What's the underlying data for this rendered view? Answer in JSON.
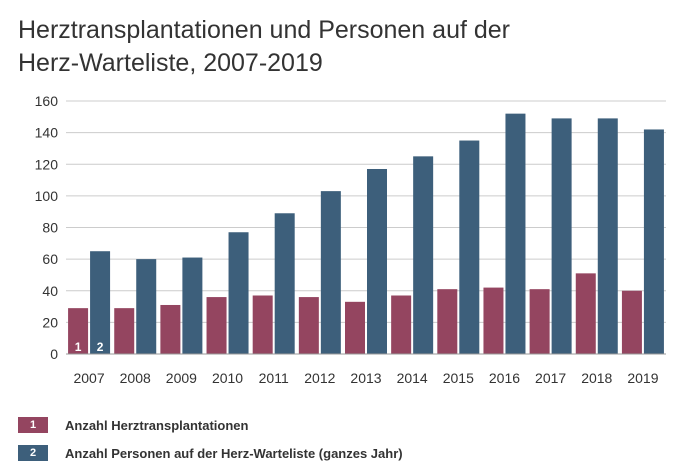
{
  "title_line1": "Herztransplantationen und Personen auf der",
  "title_line2": "Herz-Warteliste, 2007-2019",
  "colors": {
    "series1": "#944560",
    "series2": "#3d5f7b",
    "grid": "#cccccc",
    "text": "#333333"
  },
  "legend": [
    {
      "marker": "1",
      "label": "Anzahl Herztransplantationen"
    },
    {
      "marker": "2",
      "label": "Anzahl Personen auf der Herz-Warteliste (ganzes Jahr)"
    }
  ],
  "chart_data": {
    "type": "bar",
    "title": "Herztransplantationen und Personen auf der Herz-Warteliste, 2007-2019",
    "categories": [
      "2007",
      "2008",
      "2009",
      "2010",
      "2011",
      "2012",
      "2013",
      "2014",
      "2015",
      "2016",
      "2017",
      "2018",
      "2019"
    ],
    "series": [
      {
        "name": "Anzahl Herztransplantationen",
        "marker": "1",
        "values": [
          29,
          29,
          31,
          36,
          37,
          36,
          33,
          37,
          41,
          42,
          41,
          51,
          40
        ]
      },
      {
        "name": "Anzahl Personen auf der Herz-Warteliste (ganzes Jahr)",
        "marker": "2",
        "values": [
          65,
          60,
          61,
          77,
          89,
          103,
          117,
          125,
          135,
          152,
          149,
          149,
          142
        ]
      }
    ],
    "yticks": [
      0,
      20,
      40,
      60,
      80,
      100,
      120,
      140,
      160
    ],
    "ylim": [
      0,
      160
    ],
    "xlabel": "",
    "ylabel": "",
    "grid": true,
    "legend_position": "bottom"
  }
}
